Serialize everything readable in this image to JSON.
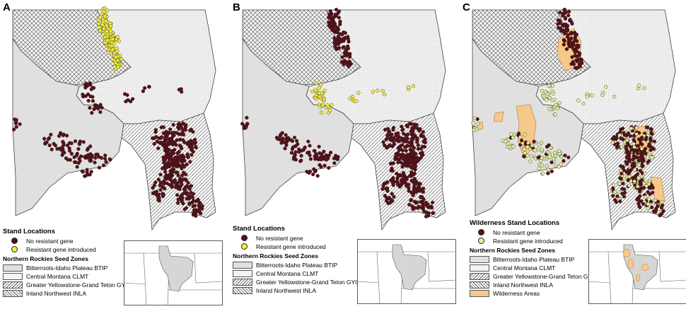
{
  "panels": [
    {
      "letter": "A",
      "legend_title": "Stand Locations",
      "scenario": "baseline"
    },
    {
      "letter": "B",
      "legend_title": "Stand Locations",
      "scenario": "rotated"
    },
    {
      "letter": "C",
      "legend_title": "Wilderness Stand Locations",
      "scenario": "wilderness"
    }
  ],
  "legend": {
    "no_gene": "No resistant gene",
    "gene": "Resistant gene introduced",
    "zones_title": "Northern Rockies Seed Zones",
    "zones": {
      "btip": "Bitterroots-Idaho Plateau BTIP",
      "clmt": "Central Montana CLMT",
      "gygt": "Greater Yellowstone-Grand Teton GYGT",
      "inla": "Inland Northwest INLA"
    },
    "wilderness": "Wilderness Areas"
  },
  "colors": {
    "no_gene": "#5a0f16",
    "gene": "#f2ef3a",
    "gene_c": "#e4ef9a",
    "btip": "#e0e0e0",
    "wilderness": "#f6c889"
  }
}
